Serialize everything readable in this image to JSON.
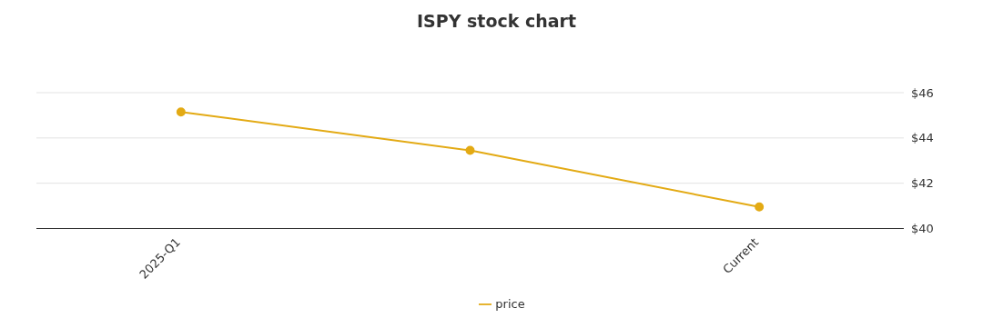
{
  "chart_data": {
    "type": "line",
    "title": "ISPY stock chart",
    "categories": [
      "2025-Q1",
      null,
      "Current"
    ],
    "series": [
      {
        "name": "price",
        "color": "#e3aa14",
        "values": [
          45.15,
          43.45,
          40.95
        ]
      }
    ],
    "ylim": [
      40,
      46
    ],
    "yticks": [
      {
        "value": 40,
        "label": "$40"
      },
      {
        "value": 42,
        "label": "$42"
      },
      {
        "value": 44,
        "label": "$44"
      },
      {
        "value": 46,
        "label": "$46"
      }
    ],
    "grid": "y",
    "legend": "bottom",
    "marker": "circle",
    "line_style": "solid"
  }
}
